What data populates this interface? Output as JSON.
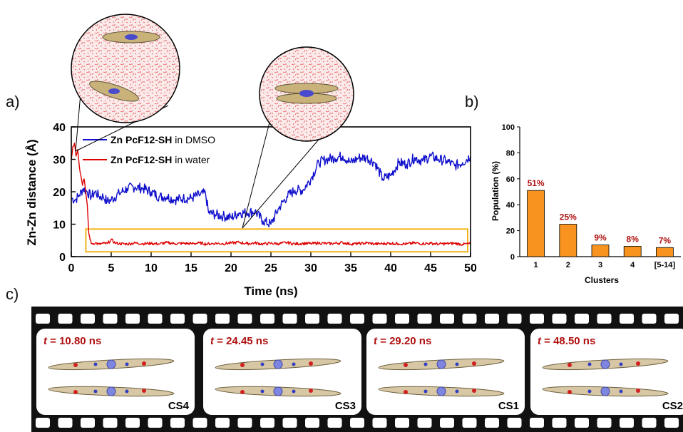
{
  "panels": {
    "a": "a)",
    "b": "b)",
    "c": "c)"
  },
  "chart_data": [
    {
      "type": "line",
      "panel": "a",
      "xlabel": "Time (ns)",
      "ylabel": "Zn-Zn distance (Å)",
      "xlim": [
        0,
        50
      ],
      "ylim": [
        0,
        40
      ],
      "xticks": [
        "0",
        "5",
        "10",
        "15",
        "20",
        "25",
        "30",
        "35",
        "40",
        "45",
        "50"
      ],
      "yticks": [
        "0",
        "10",
        "20",
        "30",
        "40"
      ],
      "grid": false,
      "legend_position": "top-left",
      "series": [
        {
          "name_bold": "Zn PcF12-SH",
          "name_suffix": " in DMSO",
          "color": "#1010cc",
          "x": [
            0,
            0.5,
            1,
            1.5,
            2,
            2.5,
            3,
            3.5,
            4,
            4.5,
            5,
            6,
            7,
            8,
            9,
            10,
            11,
            12,
            13,
            14,
            15,
            16,
            16.8,
            17.2,
            18,
            19,
            20,
            21,
            22,
            23,
            24,
            25,
            26,
            27,
            28,
            29,
            30,
            31,
            32,
            33,
            34,
            35,
            36,
            37,
            38,
            39,
            40,
            41,
            42,
            43,
            44,
            45,
            46,
            47,
            48,
            49,
            50
          ],
          "y": [
            18,
            17.5,
            19,
            21,
            20,
            18.5,
            20,
            18.5,
            18.5,
            17,
            17.5,
            19.5,
            21,
            21.5,
            21,
            20,
            18.5,
            18.5,
            17.5,
            18,
            18,
            19,
            19.5,
            13.5,
            13,
            12.5,
            12,
            13.5,
            13.5,
            14,
            11,
            10,
            15,
            18.5,
            20.5,
            20.5,
            24,
            29,
            30,
            30.5,
            31,
            29,
            30.5,
            30.5,
            29,
            24,
            25,
            29,
            28.5,
            30.5,
            29.5,
            31,
            30,
            29.5,
            28,
            29,
            31
          ]
        },
        {
          "name_bold": "Zn PcF12-SH",
          "name_suffix": " in water",
          "color": "#dd0000",
          "x": [
            0,
            0.2,
            0.4,
            0.6,
            0.8,
            1,
            1.2,
            1.4,
            1.6,
            1.8,
            2,
            2.2,
            2.5,
            3,
            3.5,
            4,
            4.5,
            5,
            5.5,
            6,
            7,
            8,
            9,
            10,
            11,
            12,
            13,
            14,
            15,
            16,
            17,
            18,
            19,
            20,
            21,
            22,
            23,
            24,
            25,
            26,
            27,
            28,
            29,
            30,
            31,
            32,
            33,
            34,
            35,
            36,
            37,
            38,
            39,
            40,
            41,
            42,
            43,
            44,
            45,
            46,
            47,
            48,
            49,
            50
          ],
          "y": [
            30,
            34,
            35,
            31,
            33,
            28,
            25,
            22,
            24,
            20,
            16,
            7,
            4,
            4.2,
            3.8,
            4.1,
            4,
            5.2,
            4.2,
            4,
            3.9,
            4.2,
            4,
            4.1,
            3.9,
            4.3,
            4,
            4.1,
            4,
            4.2,
            3.9,
            4.1,
            4,
            4.2,
            4.4,
            4,
            4.2,
            3.9,
            4.1,
            4,
            4.3,
            3.9,
            4.1,
            4,
            4.2,
            4,
            4.1,
            4.3,
            3.9,
            4,
            4.2,
            3.9,
            4,
            4.1,
            4,
            3.9,
            4.2,
            4,
            4.1,
            3.9,
            4,
            4.1,
            3.8,
            4
          ]
        }
      ],
      "annotations": {
        "highlight_box": {
          "x_range": [
            2,
            50
          ],
          "y_range": [
            1.5,
            8.5
          ],
          "color": "#f2b419"
        },
        "zoom_insets": [
          "solvent snapshot at ~0.5 ns",
          "solvent snapshot at ~21 ns"
        ]
      }
    },
    {
      "type": "bar",
      "panel": "b",
      "categories": [
        "1",
        "2",
        "3",
        "4",
        "[5-14]"
      ],
      "values": [
        51,
        25,
        9,
        8,
        7
      ],
      "value_labels": [
        "51%",
        "25%",
        "9%",
        "8%",
        "7%"
      ],
      "xlabel": "Clusters",
      "ylabel": "Population (%)",
      "ylim": [
        0,
        100
      ],
      "yticks": [
        "0",
        "20",
        "40",
        "60",
        "80",
        "100"
      ],
      "bar_color": "#f7931e",
      "label_color": "#b01010"
    }
  ],
  "film_frames": [
    {
      "time_var": "t",
      "time_value": " = 10.80 ns",
      "cluster": "CS4"
    },
    {
      "time_var": "t",
      "time_value": " = 24.45 ns",
      "cluster": "CS3"
    },
    {
      "time_var": "t",
      "time_value": " = 29.20 ns",
      "cluster": "CS1"
    },
    {
      "time_var": "t",
      "time_value": " = 48.50 ns",
      "cluster": "CS2"
    }
  ]
}
